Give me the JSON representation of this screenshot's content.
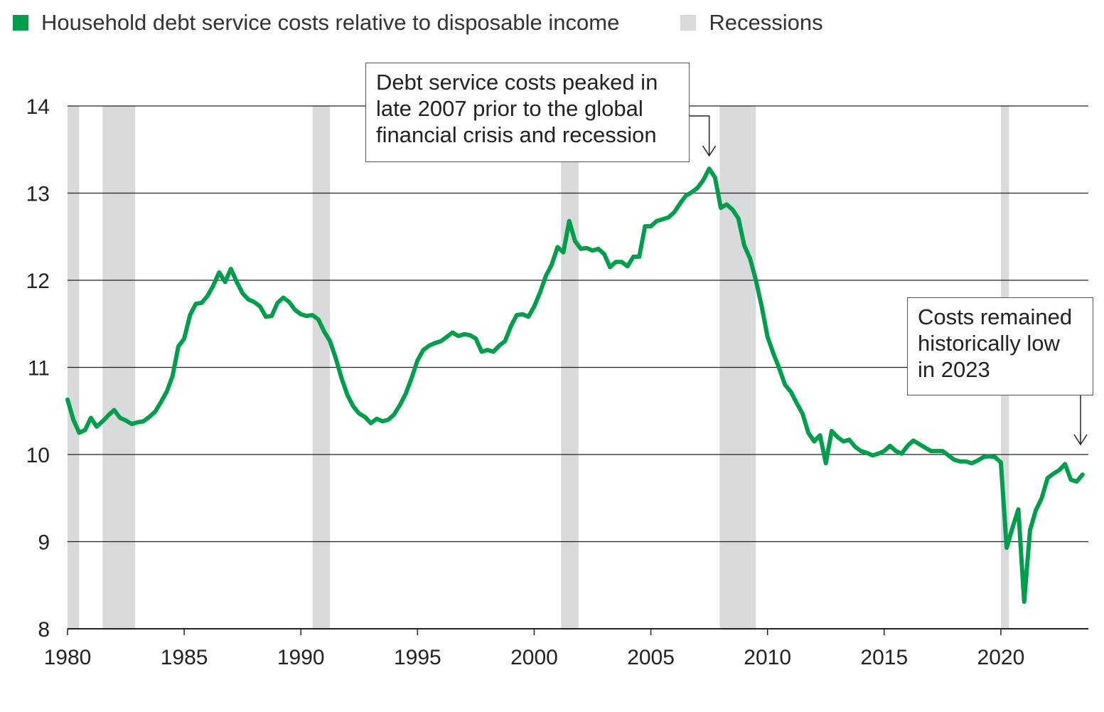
{
  "legend": {
    "series_label": "Household debt service costs relative to disposable income",
    "recession_label": "Recessions",
    "series_color": "#009E4C",
    "recession_color": "#D9DADB"
  },
  "annotations": {
    "peak": "Debt service costs peaked in\nlate 2007 prior to the global\nfinancial crisis and recession",
    "recent": "Costs remained\nhistorically low\nin 2023"
  },
  "chart_data": {
    "type": "line",
    "title": "",
    "xlabel": "",
    "ylabel": "",
    "xlim": [
      1980,
      2023.75
    ],
    "ylim": [
      8,
      14
    ],
    "x_ticks": [
      1980,
      1985,
      1990,
      1995,
      2000,
      2005,
      2010,
      2015,
      2020
    ],
    "y_ticks": [
      8,
      9,
      10,
      11,
      12,
      13,
      14
    ],
    "recessions": [
      [
        1980.0,
        1980.5
      ],
      [
        1981.5,
        1982.9
      ],
      [
        1990.5,
        1991.25
      ],
      [
        2001.15,
        2001.9
      ],
      [
        2007.95,
        2009.5
      ],
      [
        2020.0,
        2020.35
      ]
    ],
    "series": [
      {
        "name": "Household debt service costs relative to disposable income",
        "color": "#009E4C",
        "points": [
          [
            1980.0,
            10.63
          ],
          [
            1980.25,
            10.4
          ],
          [
            1980.5,
            10.25
          ],
          [
            1980.75,
            10.28
          ],
          [
            1981.0,
            10.42
          ],
          [
            1981.25,
            10.32
          ],
          [
            1981.5,
            10.38
          ],
          [
            1981.75,
            10.45
          ],
          [
            1982.0,
            10.51
          ],
          [
            1982.25,
            10.42
          ],
          [
            1982.5,
            10.39
          ],
          [
            1982.75,
            10.35
          ],
          [
            1983.0,
            10.37
          ],
          [
            1983.25,
            10.38
          ],
          [
            1983.5,
            10.43
          ],
          [
            1983.75,
            10.49
          ],
          [
            1984.0,
            10.6
          ],
          [
            1984.25,
            10.72
          ],
          [
            1984.5,
            10.9
          ],
          [
            1984.75,
            11.24
          ],
          [
            1985.0,
            11.33
          ],
          [
            1985.25,
            11.6
          ],
          [
            1985.5,
            11.73
          ],
          [
            1985.75,
            11.74
          ],
          [
            1986.0,
            11.82
          ],
          [
            1986.25,
            11.94
          ],
          [
            1986.5,
            12.09
          ],
          [
            1986.75,
            11.98
          ],
          [
            1987.0,
            12.13
          ],
          [
            1987.25,
            11.98
          ],
          [
            1987.5,
            11.85
          ],
          [
            1987.75,
            11.78
          ],
          [
            1988.0,
            11.75
          ],
          [
            1988.25,
            11.7
          ],
          [
            1988.5,
            11.58
          ],
          [
            1988.75,
            11.59
          ],
          [
            1989.0,
            11.74
          ],
          [
            1989.25,
            11.8
          ],
          [
            1989.5,
            11.75
          ],
          [
            1989.75,
            11.66
          ],
          [
            1990.0,
            11.61
          ],
          [
            1990.25,
            11.59
          ],
          [
            1990.5,
            11.6
          ],
          [
            1990.75,
            11.55
          ],
          [
            1991.0,
            11.41
          ],
          [
            1991.25,
            11.3
          ],
          [
            1991.5,
            11.1
          ],
          [
            1991.75,
            10.87
          ],
          [
            1992.0,
            10.68
          ],
          [
            1992.25,
            10.55
          ],
          [
            1992.5,
            10.47
          ],
          [
            1992.75,
            10.43
          ],
          [
            1993.0,
            10.36
          ],
          [
            1993.25,
            10.41
          ],
          [
            1993.5,
            10.38
          ],
          [
            1993.75,
            10.4
          ],
          [
            1994.0,
            10.46
          ],
          [
            1994.25,
            10.57
          ],
          [
            1994.5,
            10.7
          ],
          [
            1994.75,
            10.88
          ],
          [
            1995.0,
            11.08
          ],
          [
            1995.25,
            11.2
          ],
          [
            1995.5,
            11.25
          ],
          [
            1995.75,
            11.28
          ],
          [
            1996.0,
            11.3
          ],
          [
            1996.25,
            11.35
          ],
          [
            1996.5,
            11.4
          ],
          [
            1996.75,
            11.36
          ],
          [
            1997.0,
            11.38
          ],
          [
            1997.25,
            11.37
          ],
          [
            1997.5,
            11.33
          ],
          [
            1997.75,
            11.18
          ],
          [
            1998.0,
            11.2
          ],
          [
            1998.25,
            11.18
          ],
          [
            1998.5,
            11.25
          ],
          [
            1998.75,
            11.3
          ],
          [
            1999.0,
            11.47
          ],
          [
            1999.25,
            11.6
          ],
          [
            1999.5,
            11.61
          ],
          [
            1999.75,
            11.58
          ],
          [
            2000.0,
            11.7
          ],
          [
            2000.25,
            11.86
          ],
          [
            2000.5,
            12.05
          ],
          [
            2000.75,
            12.18
          ],
          [
            2001.0,
            12.38
          ],
          [
            2001.25,
            12.32
          ],
          [
            2001.5,
            12.68
          ],
          [
            2001.75,
            12.45
          ],
          [
            2002.0,
            12.36
          ],
          [
            2002.25,
            12.37
          ],
          [
            2002.5,
            12.34
          ],
          [
            2002.75,
            12.36
          ],
          [
            2003.0,
            12.3
          ],
          [
            2003.25,
            12.15
          ],
          [
            2003.5,
            12.21
          ],
          [
            2003.75,
            12.21
          ],
          [
            2004.0,
            12.16
          ],
          [
            2004.25,
            12.27
          ],
          [
            2004.5,
            12.27
          ],
          [
            2004.75,
            12.62
          ],
          [
            2005.0,
            12.62
          ],
          [
            2005.25,
            12.68
          ],
          [
            2005.5,
            12.7
          ],
          [
            2005.75,
            12.72
          ],
          [
            2006.0,
            12.78
          ],
          [
            2006.25,
            12.88
          ],
          [
            2006.5,
            12.97
          ],
          [
            2006.75,
            13.01
          ],
          [
            2007.0,
            13.06
          ],
          [
            2007.25,
            13.15
          ],
          [
            2007.5,
            13.28
          ],
          [
            2007.75,
            13.18
          ],
          [
            2008.0,
            12.83
          ],
          [
            2008.25,
            12.87
          ],
          [
            2008.5,
            12.81
          ],
          [
            2008.75,
            12.71
          ],
          [
            2009.0,
            12.4
          ],
          [
            2009.25,
            12.25
          ],
          [
            2009.5,
            12.0
          ],
          [
            2009.75,
            11.7
          ],
          [
            2010.0,
            11.35
          ],
          [
            2010.25,
            11.16
          ],
          [
            2010.5,
            10.99
          ],
          [
            2010.75,
            10.8
          ],
          [
            2011.0,
            10.72
          ],
          [
            2011.25,
            10.59
          ],
          [
            2011.5,
            10.47
          ],
          [
            2011.75,
            10.25
          ],
          [
            2012.0,
            10.15
          ],
          [
            2012.25,
            10.22
          ],
          [
            2012.5,
            9.9
          ],
          [
            2012.75,
            10.27
          ],
          [
            2013.0,
            10.2
          ],
          [
            2013.25,
            10.15
          ],
          [
            2013.5,
            10.17
          ],
          [
            2013.75,
            10.09
          ],
          [
            2014.0,
            10.04
          ],
          [
            2014.25,
            10.02
          ],
          [
            2014.5,
            9.99
          ],
          [
            2014.75,
            10.01
          ],
          [
            2015.0,
            10.04
          ],
          [
            2015.25,
            10.1
          ],
          [
            2015.5,
            10.04
          ],
          [
            2015.75,
            10.01
          ],
          [
            2016.0,
            10.1
          ],
          [
            2016.25,
            10.16
          ],
          [
            2016.5,
            10.12
          ],
          [
            2016.75,
            10.08
          ],
          [
            2017.0,
            10.04
          ],
          [
            2017.25,
            10.04
          ],
          [
            2017.5,
            10.04
          ],
          [
            2017.75,
            9.99
          ],
          [
            2018.0,
            9.94
          ],
          [
            2018.25,
            9.92
          ],
          [
            2018.5,
            9.92
          ],
          [
            2018.75,
            9.9
          ],
          [
            2019.0,
            9.93
          ],
          [
            2019.25,
            9.97
          ],
          [
            2019.5,
            9.98
          ],
          [
            2019.75,
            9.97
          ],
          [
            2020.0,
            9.91
          ],
          [
            2020.25,
            8.93
          ],
          [
            2020.5,
            9.16
          ],
          [
            2020.75,
            9.37
          ],
          [
            2021.0,
            8.31
          ],
          [
            2021.25,
            9.13
          ],
          [
            2021.5,
            9.36
          ],
          [
            2021.75,
            9.5
          ],
          [
            2022.0,
            9.73
          ],
          [
            2022.25,
            9.78
          ],
          [
            2022.5,
            9.82
          ],
          [
            2022.75,
            9.89
          ],
          [
            2023.0,
            9.71
          ],
          [
            2023.25,
            9.69
          ],
          [
            2023.5,
            9.77
          ]
        ]
      }
    ]
  }
}
